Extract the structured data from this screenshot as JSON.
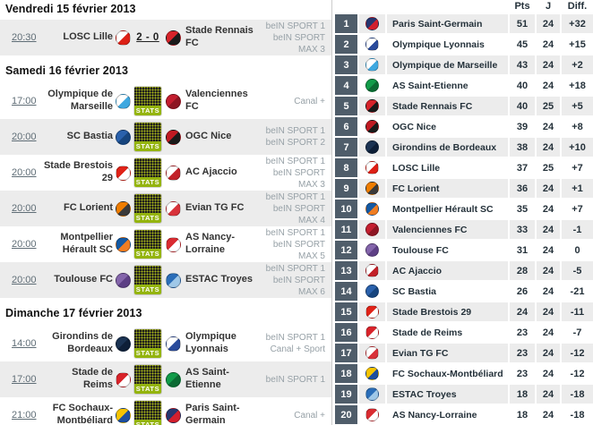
{
  "labels": {
    "stats": "STATS"
  },
  "colors": {
    "row_stripe": "#ececec",
    "position_badge": "#4f5d6a",
    "stats_green": "#94b40e",
    "stats_dark": "#1c1c1c",
    "broadcast_text": "#97a1a7"
  },
  "fixtures": {
    "days": [
      {
        "date": "Vendredi 15 février 2013",
        "matches": [
          {
            "time": "20:30",
            "home": "LOSC Lille",
            "away": "Stade Rennais FC",
            "score": "2 - 0",
            "broadcast": [
              "beIN SPORT 1",
              "beIN SPORT MAX 3"
            ],
            "home_crest": {
              "c1": "#ffffff",
              "c2": "#dd2016"
            },
            "away_crest": {
              "c1": "#d6232a",
              "c2": "#1a1a1a"
            }
          }
        ]
      },
      {
        "date": "Samedi 16 février 2013",
        "matches": [
          {
            "time": "17:00",
            "home": "Olympique de Marseille",
            "away": "Valenciennes FC",
            "broadcast": [
              "Canal +"
            ],
            "home_crest": {
              "c1": "#ffffff",
              "c2": "#3fa8e0"
            },
            "away_crest": {
              "c1": "#c41e2f",
              "c2": "#8e1522"
            }
          },
          {
            "time": "20:00",
            "home": "SC Bastia",
            "away": "OGC Nice",
            "broadcast": [
              "beIN SPORT 1",
              "beIN SPORT 2"
            ],
            "home_crest": {
              "c1": "#2a61ac",
              "c2": "#17457e"
            },
            "away_crest": {
              "c1": "#c01a22",
              "c2": "#1a1a1a"
            }
          },
          {
            "time": "20:00",
            "home": "Stade Brestois 29",
            "away": "AC Ajaccio",
            "broadcast": [
              "beIN SPORT 1",
              "beIN SPORT MAX 3"
            ],
            "home_crest": {
              "c1": "#e02318",
              "c2": "#ffffff"
            },
            "away_crest": {
              "c1": "#ffffff",
              "c2": "#c22028"
            }
          },
          {
            "time": "20:00",
            "home": "FC Lorient",
            "away": "Evian TG FC",
            "broadcast": [
              "beIN SPORT 1",
              "beIN SPORT MAX 4"
            ],
            "home_crest": {
              "c1": "#ef7d00",
              "c2": "#3a3a3a"
            },
            "away_crest": {
              "c1": "#ffffff",
              "c2": "#d8323a"
            }
          },
          {
            "time": "20:00",
            "home": "Montpellier Hérault SC",
            "away": "AS Nancy-Lorraine",
            "broadcast": [
              "beIN SPORT 1",
              "beIN SPORT MAX 5"
            ],
            "home_crest": {
              "c1": "#1459a2",
              "c2": "#ef7d22"
            },
            "away_crest": {
              "c1": "#d92b31",
              "c2": "#ffffff"
            }
          },
          {
            "time": "20:00",
            "home": "Toulouse FC",
            "away": "ESTAC Troyes",
            "broadcast": [
              "beIN SPORT 1",
              "beIN SPORT MAX 6"
            ],
            "home_crest": {
              "c1": "#8465ab",
              "c2": "#5d3f85"
            },
            "away_crest": {
              "c1": "#2a6db8",
              "c2": "#9fc8e8"
            }
          }
        ]
      },
      {
        "date": "Dimanche 17 février 2013",
        "matches": [
          {
            "time": "14:00",
            "home": "Girondins de Bordeaux",
            "away": "Olympique Lyonnais",
            "broadcast": [
              "beIN SPORT 1",
              "Canal + Sport"
            ],
            "home_crest": {
              "c1": "#1b3353",
              "c2": "#0e1f38"
            },
            "away_crest": {
              "c1": "#ffffff",
              "c2": "#2a4b9b"
            }
          },
          {
            "time": "17:00",
            "home": "Stade de Reims",
            "away": "AS Saint-Etienne",
            "broadcast": [
              "beIN SPORT 1"
            ],
            "home_crest": {
              "c1": "#d8232a",
              "c2": "#ffffff"
            },
            "away_crest": {
              "c1": "#119c49",
              "c2": "#0b6b33"
            }
          },
          {
            "time": "21:00",
            "home": "FC Sochaux-Montbéliard",
            "away": "Paris Saint-Germain",
            "broadcast": [
              "Canal +"
            ],
            "home_crest": {
              "c1": "#f5c400",
              "c2": "#1d4f9e"
            },
            "away_crest": {
              "c1": "#27356f",
              "c2": "#d21f2e"
            }
          }
        ]
      }
    ]
  },
  "standings": {
    "headers": {
      "pts": "Pts",
      "j": "J",
      "diff": "Diff."
    },
    "rows": [
      {
        "pos": "1",
        "team": "Paris Saint-Germain",
        "pts": "51",
        "j": "24",
        "diff": "+32",
        "crest": {
          "c1": "#27356f",
          "c2": "#d21f2e"
        }
      },
      {
        "pos": "2",
        "team": "Olympique Lyonnais",
        "pts": "45",
        "j": "24",
        "diff": "+15",
        "crest": {
          "c1": "#ffffff",
          "c2": "#2a4b9b"
        }
      },
      {
        "pos": "3",
        "team": "Olympique de Marseille",
        "pts": "43",
        "j": "24",
        "diff": "+2",
        "crest": {
          "c1": "#ffffff",
          "c2": "#3fa8e0"
        }
      },
      {
        "pos": "4",
        "team": "AS Saint-Etienne",
        "pts": "40",
        "j": "24",
        "diff": "+18",
        "crest": {
          "c1": "#119c49",
          "c2": "#0b6b33"
        }
      },
      {
        "pos": "5",
        "team": "Stade Rennais FC",
        "pts": "40",
        "j": "25",
        "diff": "+5",
        "crest": {
          "c1": "#d6232a",
          "c2": "#1a1a1a"
        }
      },
      {
        "pos": "6",
        "team": "OGC Nice",
        "pts": "39",
        "j": "24",
        "diff": "+8",
        "crest": {
          "c1": "#c01a22",
          "c2": "#1a1a1a"
        }
      },
      {
        "pos": "7",
        "team": "Girondins de Bordeaux",
        "pts": "38",
        "j": "24",
        "diff": "+10",
        "crest": {
          "c1": "#1b3353",
          "c2": "#0e1f38"
        }
      },
      {
        "pos": "8",
        "team": "LOSC Lille",
        "pts": "37",
        "j": "25",
        "diff": "+7",
        "crest": {
          "c1": "#ffffff",
          "c2": "#dd2016"
        }
      },
      {
        "pos": "9",
        "team": "FC Lorient",
        "pts": "36",
        "j": "24",
        "diff": "+1",
        "crest": {
          "c1": "#ef7d00",
          "c2": "#3a3a3a"
        }
      },
      {
        "pos": "10",
        "team": "Montpellier Hérault SC",
        "pts": "35",
        "j": "24",
        "diff": "+7",
        "crest": {
          "c1": "#1459a2",
          "c2": "#ef7d22"
        }
      },
      {
        "pos": "11",
        "team": "Valenciennes FC",
        "pts": "33",
        "j": "24",
        "diff": "-1",
        "crest": {
          "c1": "#c41e2f",
          "c2": "#8e1522"
        }
      },
      {
        "pos": "12",
        "team": "Toulouse FC",
        "pts": "31",
        "j": "24",
        "diff": "0",
        "crest": {
          "c1": "#8465ab",
          "c2": "#5d3f85"
        }
      },
      {
        "pos": "13",
        "team": "AC Ajaccio",
        "pts": "28",
        "j": "24",
        "diff": "-5",
        "crest": {
          "c1": "#ffffff",
          "c2": "#c22028"
        }
      },
      {
        "pos": "14",
        "team": "SC Bastia",
        "pts": "26",
        "j": "24",
        "diff": "-21",
        "crest": {
          "c1": "#2a61ac",
          "c2": "#17457e"
        }
      },
      {
        "pos": "15",
        "team": "Stade Brestois 29",
        "pts": "24",
        "j": "24",
        "diff": "-11",
        "crest": {
          "c1": "#e02318",
          "c2": "#ffffff"
        }
      },
      {
        "pos": "16",
        "team": "Stade de Reims",
        "pts": "23",
        "j": "24",
        "diff": "-7",
        "crest": {
          "c1": "#d8232a",
          "c2": "#ffffff"
        }
      },
      {
        "pos": "17",
        "team": "Evian TG FC",
        "pts": "23",
        "j": "24",
        "diff": "-12",
        "crest": {
          "c1": "#ffffff",
          "c2": "#d8323a"
        }
      },
      {
        "pos": "18",
        "team": "FC Sochaux-Montbéliard",
        "pts": "23",
        "j": "24",
        "diff": "-12",
        "crest": {
          "c1": "#f5c400",
          "c2": "#1d4f9e"
        }
      },
      {
        "pos": "19",
        "team": "ESTAC Troyes",
        "pts": "18",
        "j": "24",
        "diff": "-18",
        "crest": {
          "c1": "#2a6db8",
          "c2": "#9fc8e8"
        }
      },
      {
        "pos": "20",
        "team": "AS Nancy-Lorraine",
        "pts": "18",
        "j": "24",
        "diff": "-18",
        "crest": {
          "c1": "#d92b31",
          "c2": "#ffffff"
        }
      }
    ]
  }
}
